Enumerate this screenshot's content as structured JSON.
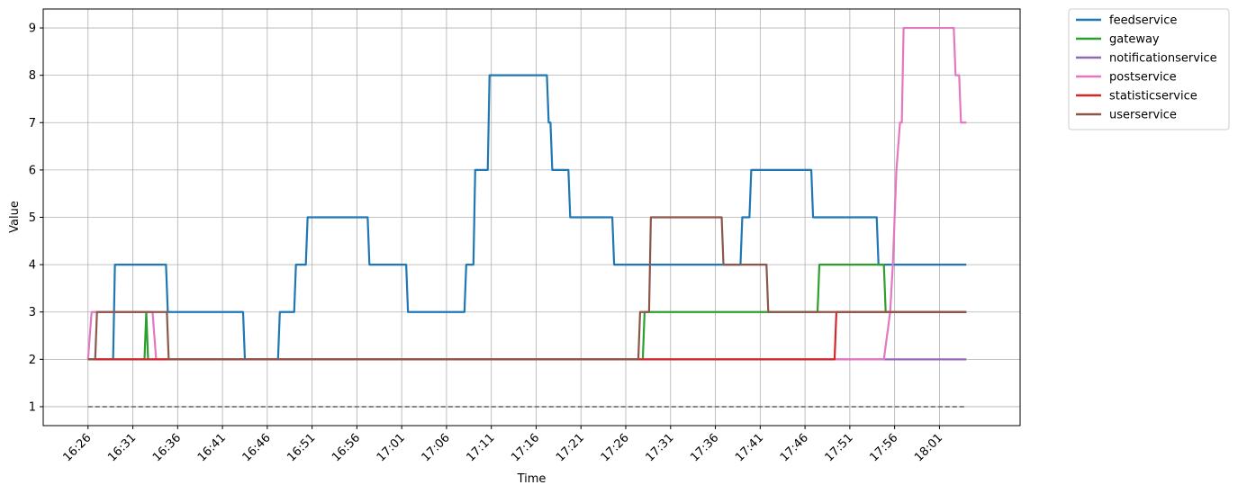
{
  "chart_data": {
    "type": "line",
    "title": "",
    "xlabel": "Time",
    "ylabel": "Value",
    "xlim": [
      "16:21",
      "18:10"
    ],
    "ylim": [
      0.6,
      9.4
    ],
    "x_tick_labels": [
      "16:26",
      "16:31",
      "16:36",
      "16:41",
      "16:46",
      "16:51",
      "16:56",
      "17:01",
      "17:06",
      "17:11",
      "17:16",
      "17:21",
      "17:26",
      "17:31",
      "17:36",
      "17:41",
      "17:46",
      "17:51",
      "17:56",
      "18:01"
    ],
    "y_ticks": [
      1,
      2,
      3,
      4,
      5,
      6,
      7,
      8,
      9
    ],
    "grid": true,
    "legend_position": "outside top-right",
    "series": [
      {
        "name": "feedservice",
        "color": "#1f77b4",
        "points": [
          [
            "16:26",
            2
          ],
          [
            "16:28.8",
            2
          ],
          [
            "16:29",
            4
          ],
          [
            "16:34.7",
            4
          ],
          [
            "16:34.9",
            3
          ],
          [
            "16:43.3",
            3
          ],
          [
            "16:43.5",
            2
          ],
          [
            "16:47.2",
            2
          ],
          [
            "16:47.4",
            3
          ],
          [
            "16:49",
            3
          ],
          [
            "16:49.2",
            4
          ],
          [
            "16:50.3",
            4
          ],
          [
            "16:50.5",
            5
          ],
          [
            "16:57.2",
            5
          ],
          [
            "16:57.4",
            4
          ],
          [
            "17:01.5",
            4
          ],
          [
            "17:01.7",
            3
          ],
          [
            "17:08",
            3
          ],
          [
            "17:08.2",
            4
          ],
          [
            "17:09",
            4
          ],
          [
            "17:09.2",
            6
          ],
          [
            "17:10.6",
            6
          ],
          [
            "17:10.8",
            8
          ],
          [
            "17:17.2",
            8
          ],
          [
            "17:17.4",
            7
          ],
          [
            "17:17.6",
            7
          ],
          [
            "17:17.8",
            6
          ],
          [
            "17:19.6",
            6
          ],
          [
            "17:19.8",
            5
          ],
          [
            "17:24.5",
            5
          ],
          [
            "17:24.7",
            4
          ],
          [
            "17:38.8",
            4
          ],
          [
            "17:39",
            5
          ],
          [
            "17:39.8",
            5
          ],
          [
            "17:40",
            6
          ],
          [
            "17:46.7",
            6
          ],
          [
            "17:46.9",
            5
          ],
          [
            "17:54",
            5
          ],
          [
            "17:54.2",
            4
          ],
          [
            "18:04",
            4
          ]
        ]
      },
      {
        "name": "gateway",
        "color": "#2ca02c",
        "points": [
          [
            "16:26",
            2
          ],
          [
            "16:32.3",
            2
          ],
          [
            "16:32.5",
            3
          ],
          [
            "16:32.7",
            2
          ],
          [
            "17:27.9",
            2
          ],
          [
            "17:28.1",
            3
          ],
          [
            "17:47.4",
            3
          ],
          [
            "17:47.6",
            4
          ],
          [
            "17:54.8",
            4
          ],
          [
            "17:55",
            3
          ],
          [
            "18:04",
            3
          ]
        ]
      },
      {
        "name": "notificationservice",
        "color": "#9467bd",
        "points": [
          [
            "16:26",
            2
          ],
          [
            "18:04",
            2
          ]
        ]
      },
      {
        "name": "postservice",
        "color": "#e377c2",
        "points": [
          [
            "16:26",
            2
          ],
          [
            "16:26.4",
            3
          ],
          [
            "16:33.2",
            3
          ],
          [
            "16:33.6",
            2
          ],
          [
            "17:54.8",
            2
          ],
          [
            "17:55.5",
            3
          ],
          [
            "17:55.8",
            4
          ],
          [
            "17:56.2",
            6
          ],
          [
            "17:56.6",
            7
          ],
          [
            "17:56.8",
            7
          ],
          [
            "17:57",
            9
          ],
          [
            "18:02.6",
            9
          ],
          [
            "18:02.8",
            8
          ],
          [
            "18:03.2",
            8
          ],
          [
            "18:03.4",
            7
          ],
          [
            "18:04",
            7
          ]
        ]
      },
      {
        "name": "statisticservice",
        "color": "#d62728",
        "points": [
          [
            "16:26",
            2
          ],
          [
            "17:49.3",
            2
          ],
          [
            "17:49.5",
            3
          ],
          [
            "18:04",
            3
          ]
        ]
      },
      {
        "name": "userservice",
        "color": "#8c564b",
        "points": [
          [
            "16:26",
            2
          ],
          [
            "16:26.8",
            2
          ],
          [
            "16:27",
            3
          ],
          [
            "16:34.8",
            3
          ],
          [
            "16:35",
            2
          ],
          [
            "17:27.4",
            2
          ],
          [
            "17:27.6",
            3
          ],
          [
            "17:28.6",
            3
          ],
          [
            "17:28.8",
            5
          ],
          [
            "17:36.7",
            5
          ],
          [
            "17:36.9",
            4
          ],
          [
            "17:41.7",
            4
          ],
          [
            "17:41.9",
            3
          ],
          [
            "18:04",
            3
          ]
        ]
      }
    ],
    "reference_lines": [
      {
        "style": "dashed",
        "color": "#888888",
        "y": 1,
        "x": [
          "16:26",
          "18:04"
        ]
      }
    ]
  }
}
